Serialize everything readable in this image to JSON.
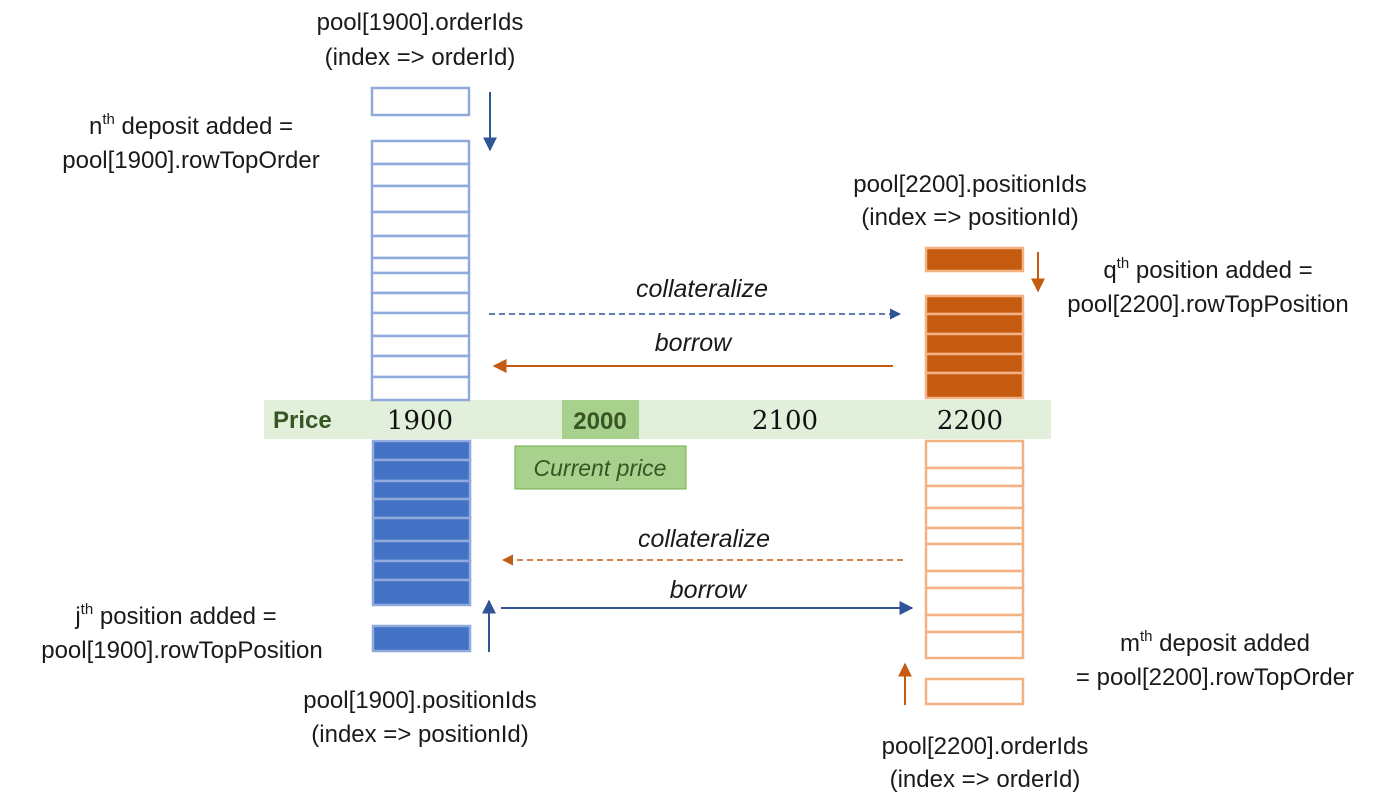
{
  "colors": {
    "blue_outline": "#8faadc",
    "blue_fill": "#4472c4",
    "blue_arrow": "#2f5597",
    "orange_outline": "#f4b183",
    "orange_fill": "#c55a11",
    "orange_arrow": "#c55a11",
    "price_band": "#e2efda",
    "current_price_fill": "#a9d18e",
    "current_label_text": "#375623"
  },
  "price_axis": {
    "label": "Price",
    "ticks": [
      "1900",
      "2000",
      "2100",
      "2200"
    ],
    "current": "2000",
    "current_label": "Current price"
  },
  "labels": {
    "pool1900_order_ids": [
      "pool[1900].orderIds",
      "(index => orderId)"
    ],
    "nth_deposit": {
      "base": "n",
      "sup": "th",
      "rest": " deposit added =",
      "line2": "pool[1900].rowTopOrder"
    },
    "pool2200_position_ids": [
      "pool[2200].positionIds",
      "(index => positionId)"
    ],
    "qth_position": {
      "base": "q",
      "sup": "th",
      "rest": " position added =",
      "line2": "pool[2200].rowTopPosition"
    },
    "jth_position": {
      "base": "j",
      "sup": "th",
      "rest": " position added =",
      "line2": "pool[1900].rowTopPosition"
    },
    "pool1900_position_ids": [
      "pool[1900].positionIds",
      "(index => positionId)"
    ],
    "mth_deposit": {
      "base": "m",
      "sup": "th",
      "rest": " deposit added",
      "line2": "= pool[2200].rowTopOrder"
    },
    "pool2200_order_ids": [
      "pool[2200].orderIds",
      "(index => orderId)"
    ]
  },
  "arrows": {
    "top_collateralize": "collateralize",
    "top_borrow": "borrow",
    "bottom_collateralize": "collateralize",
    "bottom_borrow": "borrow"
  }
}
